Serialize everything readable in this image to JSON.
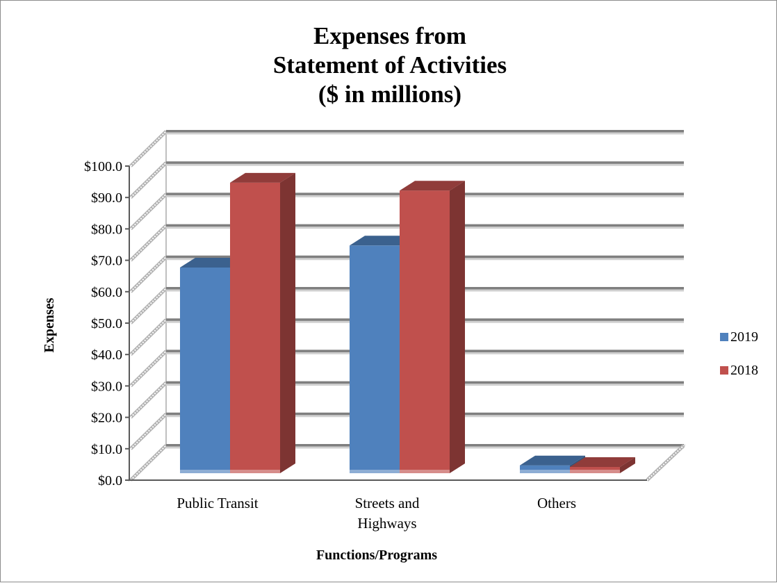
{
  "chart_data": {
    "type": "bar",
    "title_lines": [
      "Expenses from",
      "Statement of Activities",
      "($ in millions)"
    ],
    "xlabel": "Functions/Programs",
    "ylabel": "Expenses",
    "categories": [
      [
        "Public Transit"
      ],
      [
        "Streets and",
        "Highways"
      ],
      [
        "Others"
      ]
    ],
    "series": [
      {
        "name": "2019",
        "values": [
          65.5,
          72.5,
          2.5
        ],
        "color": "#4f81bd"
      },
      {
        "name": "2018",
        "values": [
          92.5,
          90.0,
          2.0
        ],
        "color": "#c0504d"
      }
    ],
    "ylim": [
      0,
      100
    ],
    "yticks": [
      "$0.0",
      "$10.0",
      "$20.0",
      "$30.0",
      "$40.0",
      "$50.0",
      "$60.0",
      "$70.0",
      "$80.0",
      "$90.0",
      "$100.0"
    ],
    "grid": true,
    "legend_position": "right",
    "projection": "3d"
  }
}
